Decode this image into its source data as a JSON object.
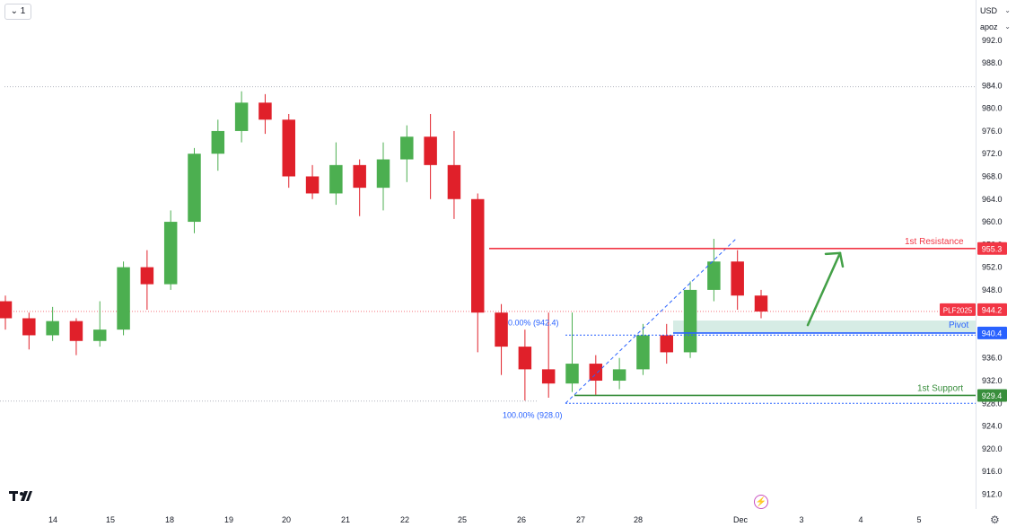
{
  "toolbar": {
    "interval_button": "⌄ 1"
  },
  "price_axis_header": {
    "currency": "USD",
    "unit": "apoz"
  },
  "icons": {
    "logo": "tradingview-logo-icon",
    "flash": "lightning-icon",
    "settings": "gear-icon"
  },
  "colors": {
    "up": "#26a69a",
    "up_candle": "#4caf50",
    "down": "#e0202a",
    "resistance": "#f23645",
    "pivot": "#2962ff",
    "support": "#388e3c",
    "pivot_zone": "#d6ece5",
    "fib": "#2962ff",
    "arrow": "#43a047"
  },
  "chart_data": {
    "type": "candlestick",
    "y_axis": {
      "ticks": [
        992.0,
        988.0,
        984.0,
        980.0,
        976.0,
        972.0,
        968.0,
        964.0,
        960.0,
        956.0,
        952.0,
        948.0,
        944.0,
        940.0,
        936.0,
        932.0,
        928.0,
        924.0,
        920.0,
        916.0,
        912.0
      ],
      "ylim": [
        910.4,
        994.0
      ]
    },
    "x_axis": {
      "tick_labels": [
        "14",
        "15",
        "18",
        "19",
        "20",
        "21",
        "22",
        "25",
        "26",
        "27",
        "28",
        "Dec",
        "3",
        "4",
        "5"
      ]
    },
    "candles": [
      [
        946.0,
        943.0,
        947.0,
        941.0
      ],
      [
        943.0,
        940.0,
        944.0,
        937.5
      ],
      [
        940.0,
        942.5,
        945.0,
        939.0
      ],
      [
        942.5,
        939.0,
        943.0,
        936.5
      ],
      [
        939.0,
        941.0,
        946.0,
        938.0
      ],
      [
        941.0,
        952.0,
        953.0,
        940.0
      ],
      [
        952.0,
        949.0,
        955.0,
        944.5
      ],
      [
        949.0,
        960.0,
        962.0,
        948.0
      ],
      [
        960.0,
        972.0,
        973.0,
        958.0
      ],
      [
        972.0,
        976.0,
        978.0,
        969.0
      ],
      [
        976.0,
        981.0,
        983.0,
        974.0
      ],
      [
        981.0,
        978.0,
        982.5,
        975.5
      ],
      [
        978.0,
        968.0,
        979.0,
        966.0
      ],
      [
        968.0,
        965.0,
        970.0,
        964.0
      ],
      [
        965.0,
        970.0,
        974.0,
        963.0
      ],
      [
        970.0,
        966.0,
        971.0,
        961.0
      ],
      [
        966.0,
        971.0,
        974.0,
        962.0
      ],
      [
        971.0,
        975.0,
        977.0,
        967.0
      ],
      [
        975.0,
        970.0,
        979.0,
        964.0
      ],
      [
        970.0,
        964.0,
        976.0,
        960.5
      ],
      [
        964.0,
        944.0,
        965.0,
        937.0
      ],
      [
        944.0,
        938.0,
        945.5,
        933.0
      ],
      [
        938.0,
        934.0,
        941.0,
        928.5
      ],
      [
        934.0,
        931.5,
        944.0,
        929.0
      ],
      [
        931.5,
        935.0,
        944.0,
        930.0
      ],
      [
        935.0,
        932.0,
        936.5,
        929.5
      ],
      [
        932.0,
        934.0,
        936.0,
        930.5
      ],
      [
        934.0,
        940.0,
        942.0,
        933.0
      ],
      [
        940.0,
        937.0,
        942.0,
        935.0
      ],
      [
        937.0,
        948.0,
        949.5,
        936.0
      ],
      [
        948.0,
        953.0,
        957.0,
        946.0
      ],
      [
        953.0,
        947.0,
        955.0,
        944.5
      ],
      [
        947.0,
        944.2,
        948.0,
        943.0
      ]
    ],
    "levels": [
      {
        "name": "1st Resistance",
        "value": 955.3,
        "tag": "955.3"
      },
      {
        "name": "Pivot",
        "value": 940.4,
        "tag": "940.4"
      },
      {
        "name": "1st Support",
        "value": 929.4,
        "tag": "929.4"
      }
    ],
    "symbol_tag": {
      "name": "PLF2025",
      "value": 944.2,
      "tag": "944.2"
    },
    "fibonacci": {
      "label_0": "0.00% (942.4)",
      "label_100": "100.00% (928.0)",
      "level_0": 942.4,
      "level_100": 928.0
    },
    "pivot_zone": [
      940.4,
      942.6
    ],
    "annotation": {
      "type": "arrow",
      "from_value": 941.8,
      "to_value": 954.5
    },
    "dotted_reference_levels": [
      983.8,
      944.2
    ]
  }
}
